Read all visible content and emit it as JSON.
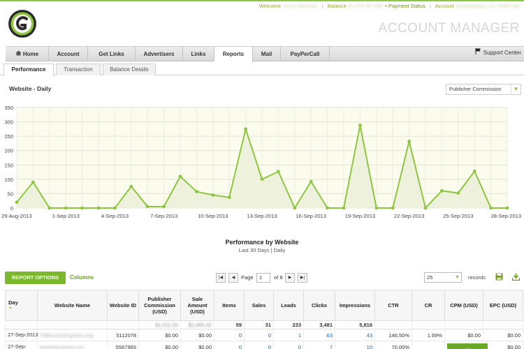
{
  "topbar": {
    "welcome_label": "Welcome",
    "welcome_name": "Jonny Atkinson",
    "balance_label": "Balance",
    "balance_value": "$1,978.36 USD",
    "payment_status": "• Payment Status",
    "account_label": "Account",
    "account_value": "Onlinedating LLC (CB0716)"
  },
  "header": {
    "title": "ACCOUNT MANAGER"
  },
  "nav": {
    "items": [
      {
        "label": "Home"
      },
      {
        "label": "Account"
      },
      {
        "label": "Get Links"
      },
      {
        "label": "Advertisers"
      },
      {
        "label": "Links"
      },
      {
        "label": "Reports"
      },
      {
        "label": "Mail"
      },
      {
        "label": "PayPerCall"
      }
    ],
    "support": "Support Center"
  },
  "subtabs": [
    {
      "label": "Performance"
    },
    {
      "label": "Transaction"
    },
    {
      "label": "Balance Details"
    }
  ],
  "chart_section": {
    "title": "Website - Daily",
    "metric_select": "Publisher Commission"
  },
  "chart_data": {
    "type": "line",
    "title": "",
    "xlabel": "",
    "ylabel": "",
    "ylim": [
      0,
      350
    ],
    "yticks": [
      0,
      50,
      100,
      150,
      200,
      250,
      300,
      350
    ],
    "x_tick_labels": [
      "29-Aug-2013",
      "1-Sep-2013",
      "4-Sep-2013",
      "7-Sep-2013",
      "10-Sep-2013",
      "13-Sep-2013",
      "16-Sep-2013",
      "19-Sep-2013",
      "22-Sep-2013",
      "25-Sep-2013",
      "28-Sep-2013"
    ],
    "x": [
      "29-Aug-2013",
      "30-Aug-2013",
      "31-Aug-2013",
      "1-Sep-2013",
      "2-Sep-2013",
      "3-Sep-2013",
      "4-Sep-2013",
      "5-Sep-2013",
      "6-Sep-2013",
      "7-Sep-2013",
      "8-Sep-2013",
      "9-Sep-2013",
      "10-Sep-2013",
      "11-Sep-2013",
      "12-Sep-2013",
      "13-Sep-2013",
      "14-Sep-2013",
      "15-Sep-2013",
      "16-Sep-2013",
      "17-Sep-2013",
      "18-Sep-2013",
      "19-Sep-2013",
      "20-Sep-2013",
      "21-Sep-2013",
      "22-Sep-2013",
      "23-Sep-2013",
      "24-Sep-2013",
      "25-Sep-2013",
      "26-Sep-2013",
      "27-Sep-2013",
      "28-Sep-2013"
    ],
    "values": [
      20,
      90,
      0,
      0,
      0,
      0,
      0,
      75,
      5,
      5,
      110,
      57,
      45,
      37,
      275,
      100,
      127,
      0,
      92,
      0,
      0,
      288,
      0,
      0,
      232,
      0,
      60,
      52,
      128,
      0,
      0
    ],
    "grid": true,
    "line_color": "#8dc63f"
  },
  "perf": {
    "title": "Performance by Website",
    "subtitle": "Last 30 Days | Daily"
  },
  "toolbar": {
    "report_options": "REPORT OPTIONS",
    "columns": "Columns",
    "page_label": "Page",
    "page_value": "1",
    "of_label": "of 8",
    "per_page": "25",
    "records_label": "records"
  },
  "table": {
    "headers": [
      "Day",
      "Website Name",
      "Website ID",
      "Publisher Commission (USD)",
      "Sale Amount (USD)",
      "Items",
      "Sales",
      "Leads",
      "Clicks",
      "Impressions",
      "CTR",
      "CR",
      "CPM (USD)",
      "EPC (USD)"
    ],
    "totals": {
      "commission": "$1,011.02",
      "sale_amount": "$1,065.32",
      "items": "59",
      "sales": "31",
      "leads": "233",
      "clicks": "3,481",
      "impressions": "5,816"
    },
    "rows": [
      {
        "day": "27-Sep-2013",
        "website": "YBBestDatingSites.org",
        "id": "5112078",
        "commission": "$0.00",
        "sale": "$0.00",
        "items": "0",
        "sales": "0",
        "leads": "1",
        "clicks": "63",
        "impressions": "43",
        "ctr": "146.50%",
        "cr": "1.69%",
        "cpm": "$0.00",
        "epc": "$0.00"
      },
      {
        "day": "27-Sep-",
        "website": "bestdatingsites.org",
        "id": "5567965",
        "commission": "$0.00",
        "sale": "$0.00",
        "items": "0",
        "sales": "0",
        "leads": "0",
        "clicks": "7",
        "impressions": "10",
        "ctr": "70.00%",
        "cr": "",
        "cpm": "…",
        "epc": "$0.00"
      }
    ]
  }
}
